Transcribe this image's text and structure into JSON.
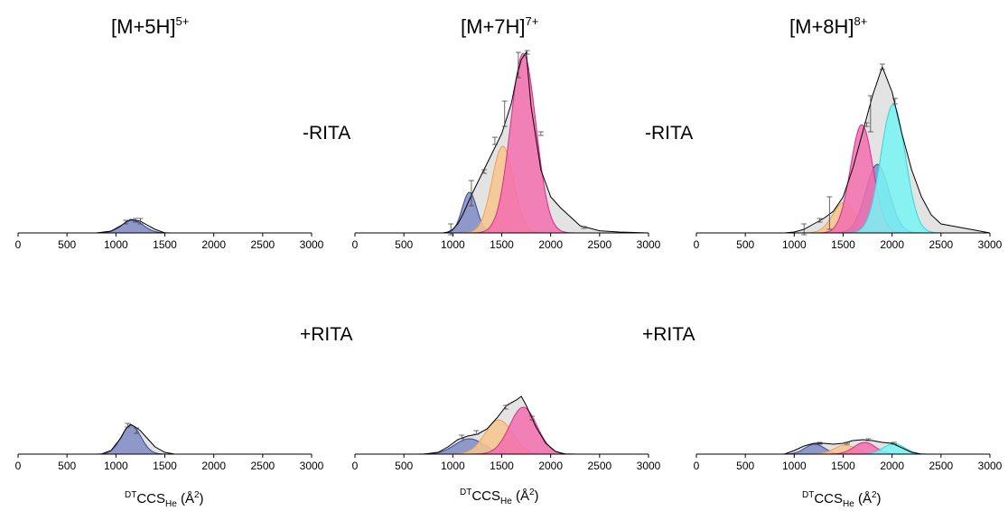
{
  "columns": [
    {
      "title_base": "[M+5H]",
      "title_sup": "5+"
    },
    {
      "title_base": "[M+7H]",
      "title_sup": "7+"
    },
    {
      "title_base": "[M+8H]",
      "title_sup": "8+"
    }
  ],
  "condition_labels": {
    "minus": "-RITA",
    "plus": "+RITA"
  },
  "xlabel": {
    "prefix": "DT",
    "main": "CCS",
    "sub": "He",
    "unit_open": " (Å",
    "unit_sup": "2",
    "unit_close": ")"
  },
  "colors": {
    "envelope_fill": "#e3e3e3",
    "envelope_line": "#000000",
    "navy": "#3a4a9c",
    "navy_fill": "#7f8bc4",
    "orange": "#f0a050",
    "orange_fill": "#f7c68e",
    "pink": "#d62d86",
    "pink_fill": "#f36faf",
    "cyan": "#2ed8d8",
    "cyan_fill": "#78f4f4",
    "errorbar": "#444444"
  },
  "chart_data": [
    {
      "type": "area",
      "panel": "[M+5H]5+ -RITA",
      "xlim": [
        0,
        3000
      ],
      "ylim": [
        0,
        1.0
      ],
      "xticks": [
        0,
        500,
        1000,
        1500,
        2000,
        2500,
        3000
      ],
      "envelope": {
        "x": [
          800,
          950,
          1050,
          1100,
          1150,
          1200,
          1250,
          1300,
          1400,
          1500
        ],
        "y": [
          0,
          0.01,
          0.04,
          0.06,
          0.075,
          0.07,
          0.065,
          0.05,
          0.02,
          0
        ]
      },
      "gaussians": [
        {
          "color": "navy",
          "center": 1170,
          "sigma": 110,
          "height": 0.07
        }
      ],
      "errorbars": [
        {
          "x": 1100,
          "y": 0.06,
          "err": 0.01
        },
        {
          "x": 1200,
          "y": 0.07,
          "err": 0.01
        },
        {
          "x": 1250,
          "y": 0.065,
          "err": 0.015
        }
      ]
    },
    {
      "type": "area",
      "panel": "[M+7H]7+ -RITA",
      "xlim": [
        0,
        3000
      ],
      "ylim": [
        0,
        1.0
      ],
      "xticks": [
        0,
        500,
        1000,
        1500,
        2000,
        2500,
        3000
      ],
      "envelope": {
        "x": [
          0,
          900,
          950,
          1000,
          1050,
          1100,
          1150,
          1200,
          1300,
          1400,
          1500,
          1600,
          1650,
          1700,
          1750,
          1800,
          1900,
          2000,
          2100,
          2300,
          2500,
          2700,
          3000
        ],
        "y": [
          0,
          0,
          0.005,
          0.02,
          0.05,
          0.1,
          0.16,
          0.22,
          0.33,
          0.44,
          0.55,
          0.72,
          0.86,
          0.96,
          1.0,
          0.7,
          0.35,
          0.2,
          0.14,
          0.04,
          0.012,
          0.005,
          0
        ]
      },
      "gaussians": [
        {
          "color": "navy",
          "center": 1170,
          "sigma": 75,
          "height": 0.225
        },
        {
          "color": "orange",
          "center": 1510,
          "sigma": 110,
          "height": 0.48
        },
        {
          "color": "pink",
          "center": 1720,
          "sigma": 130,
          "height": 0.995
        }
      ],
      "errorbars": [
        {
          "x": 980,
          "y": 0.02,
          "err": 0.03
        },
        {
          "x": 1190,
          "y": 0.22,
          "err": 0.07
        },
        {
          "x": 1320,
          "y": 0.34,
          "err": 0.01
        },
        {
          "x": 1430,
          "y": 0.51,
          "err": 0.02
        },
        {
          "x": 1530,
          "y": 0.66,
          "err": 0.07
        },
        {
          "x": 1670,
          "y": 0.93,
          "err": 0.07
        },
        {
          "x": 1760,
          "y": 1.0,
          "err": 0.01
        },
        {
          "x": 1900,
          "y": 0.55,
          "err": 0.01
        },
        {
          "x": 2340,
          "y": 0.03,
          "err": 0.005
        }
      ]
    },
    {
      "type": "area",
      "panel": "[M+8H]8+ -RITA",
      "xlim": [
        0,
        3000
      ],
      "ylim": [
        0,
        1.0
      ],
      "xticks": [
        0,
        500,
        1000,
        1500,
        2000,
        2500,
        3000
      ],
      "envelope": {
        "x": [
          0,
          900,
          1000,
          1100,
          1200,
          1300,
          1400,
          1500,
          1600,
          1700,
          1800,
          1900,
          2000,
          2100,
          2200,
          2300,
          2400,
          2500,
          2700,
          3000
        ],
        "y": [
          0,
          0,
          0.005,
          0.02,
          0.05,
          0.08,
          0.12,
          0.2,
          0.36,
          0.56,
          0.76,
          0.92,
          0.78,
          0.55,
          0.35,
          0.2,
          0.1,
          0.05,
          0.03,
          0
        ]
      },
      "gaussians": [
        {
          "color": "orange",
          "center": 1510,
          "sigma": 115,
          "height": 0.17
        },
        {
          "color": "navy",
          "center": 1850,
          "sigma": 120,
          "height": 0.38
        },
        {
          "color": "pink",
          "center": 1690,
          "sigma": 115,
          "height": 0.6
        },
        {
          "color": "cyan",
          "center": 2010,
          "sigma": 125,
          "height": 0.71
        }
      ],
      "errorbars": [
        {
          "x": 1100,
          "y": 0.02,
          "err": 0.03
        },
        {
          "x": 1260,
          "y": 0.07,
          "err": 0.01
        },
        {
          "x": 1360,
          "y": 0.11,
          "err": 0.09
        },
        {
          "x": 1740,
          "y": 0.6,
          "err": 0.01
        },
        {
          "x": 1780,
          "y": 0.66,
          "err": 0.1
        },
        {
          "x": 1900,
          "y": 0.92,
          "err": 0.015
        },
        {
          "x": 2030,
          "y": 0.73,
          "err": 0.015
        }
      ]
    },
    {
      "type": "area",
      "panel": "[M+5H]5+ +RITA",
      "xlim": [
        0,
        3000
      ],
      "ylim": [
        0,
        1.0
      ],
      "xticks": [
        0,
        500,
        1000,
        1500,
        2000,
        2500,
        3000
      ],
      "envelope": {
        "x": [
          850,
          950,
          1050,
          1100,
          1150,
          1200,
          1250,
          1300,
          1400,
          1500,
          1600
        ],
        "y": [
          0,
          0.02,
          0.09,
          0.14,
          0.165,
          0.15,
          0.13,
          0.1,
          0.04,
          0.01,
          0
        ]
      },
      "gaussians": [
        {
          "color": "navy",
          "center": 1155,
          "sigma": 100,
          "height": 0.16
        }
      ],
      "errorbars": [
        {
          "x": 1120,
          "y": 0.16,
          "err": 0.01
        },
        {
          "x": 1210,
          "y": 0.13,
          "err": 0.015
        }
      ]
    },
    {
      "type": "area",
      "panel": "[M+7H]7+ +RITA",
      "xlim": [
        0,
        3000
      ],
      "ylim": [
        0,
        1.0
      ],
      "xticks": [
        0,
        500,
        1000,
        1500,
        2000,
        2500,
        3000
      ],
      "envelope": {
        "x": [
          700,
          850,
          950,
          1050,
          1150,
          1250,
          1350,
          1450,
          1550,
          1650,
          1700,
          1750,
          1850,
          1950,
          2050,
          2150
        ],
        "y": [
          0,
          0.01,
          0.04,
          0.08,
          0.1,
          0.11,
          0.14,
          0.2,
          0.27,
          0.3,
          0.32,
          0.27,
          0.15,
          0.06,
          0.015,
          0
        ]
      },
      "gaussians": [
        {
          "color": "navy",
          "center": 1170,
          "sigma": 150,
          "height": 0.085
        },
        {
          "color": "orange",
          "center": 1470,
          "sigma": 140,
          "height": 0.19
        },
        {
          "color": "pink",
          "center": 1720,
          "sigma": 140,
          "height": 0.26
        }
      ],
      "errorbars": [
        {
          "x": 1090,
          "y": 0.095,
          "err": 0.01
        },
        {
          "x": 1240,
          "y": 0.12,
          "err": 0.01
        },
        {
          "x": 1540,
          "y": 0.26,
          "err": 0.01
        },
        {
          "x": 1810,
          "y": 0.2,
          "err": 0.01
        }
      ]
    },
    {
      "type": "area",
      "panel": "[M+8H]8+ +RITA",
      "xlim": [
        0,
        3000
      ],
      "ylim": [
        0,
        1.0
      ],
      "xticks": [
        0,
        500,
        1000,
        1500,
        2000,
        2500,
        3000
      ],
      "envelope": {
        "x": [
          900,
          1000,
          1100,
          1200,
          1300,
          1400,
          1500,
          1600,
          1700,
          1800,
          1900,
          2000,
          2100,
          2200,
          2300
        ],
        "y": [
          0,
          0.02,
          0.045,
          0.06,
          0.06,
          0.055,
          0.06,
          0.075,
          0.08,
          0.075,
          0.065,
          0.06,
          0.035,
          0.01,
          0
        ]
      },
      "gaussians": [
        {
          "color": "navy",
          "center": 1210,
          "sigma": 100,
          "height": 0.055
        },
        {
          "color": "orange",
          "center": 1520,
          "sigma": 110,
          "height": 0.05
        },
        {
          "color": "pink",
          "center": 1720,
          "sigma": 110,
          "height": 0.065
        },
        {
          "color": "cyan",
          "center": 2020,
          "sigma": 110,
          "height": 0.058
        }
      ],
      "errorbars": [
        {
          "x": 1260,
          "y": 0.06,
          "err": 0.005
        },
        {
          "x": 1540,
          "y": 0.06,
          "err": 0.005
        },
        {
          "x": 1760,
          "y": 0.08,
          "err": 0.005
        },
        {
          "x": 2020,
          "y": 0.06,
          "err": 0.005
        }
      ]
    }
  ]
}
